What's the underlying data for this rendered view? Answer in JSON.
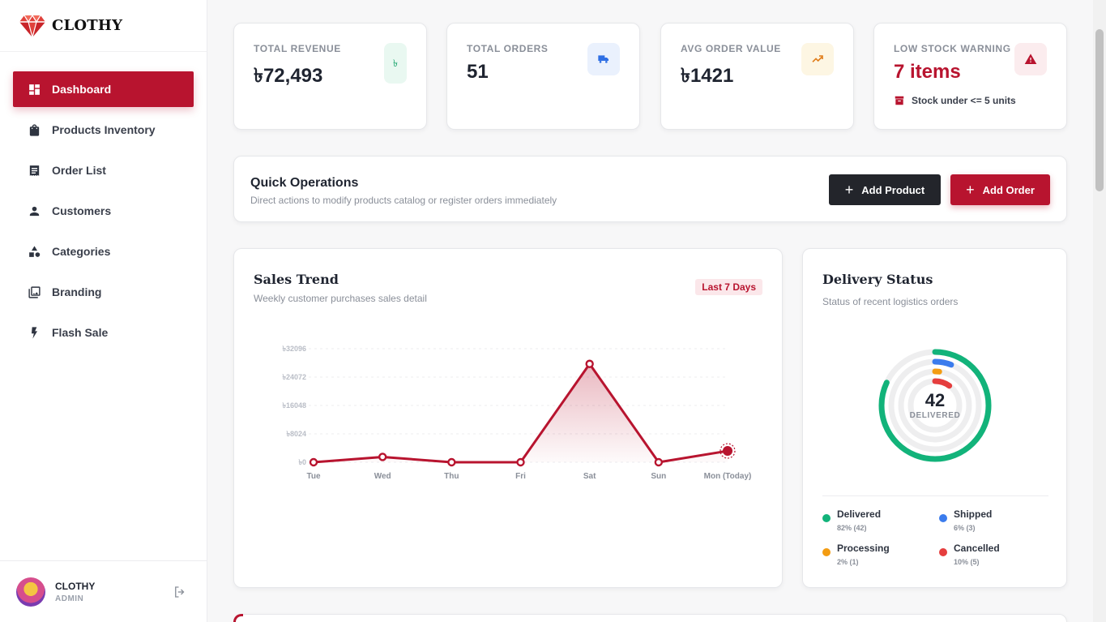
{
  "brand": {
    "name": "CLOTHY"
  },
  "sidebar": {
    "items": [
      {
        "label": "Dashboard",
        "icon": "dashboard-icon",
        "active": true
      },
      {
        "label": "Products Inventory",
        "icon": "shopping-bag-icon"
      },
      {
        "label": "Order List",
        "icon": "receipt-icon"
      },
      {
        "label": "Customers",
        "icon": "user-icon"
      },
      {
        "label": "Categories",
        "icon": "shapes-icon"
      },
      {
        "label": "Branding",
        "icon": "image-icon"
      },
      {
        "label": "Flash Sale",
        "icon": "bolt-icon"
      }
    ],
    "user": {
      "name": "CLOTHY",
      "role": "ADMIN"
    }
  },
  "stats": [
    {
      "label": "TOTAL REVENUE",
      "value": "৳72,493",
      "icon": "taka-icon",
      "icon_color": "#16a36a",
      "icon_bg": "#e9f8f1"
    },
    {
      "label": "TOTAL ORDERS",
      "value": "51",
      "icon": "truck-icon",
      "icon_color": "#2f6fe4",
      "icon_bg": "#eaf1fd"
    },
    {
      "label": "AVG ORDER VALUE",
      "value": "৳1421",
      "icon": "trending-up-icon",
      "icon_color": "#e07b17",
      "icon_bg": "#fdf6e3"
    },
    {
      "label": "LOW STOCK WARNING",
      "value": "7 items",
      "note": "Stock under <= 5 units",
      "icon": "warning-icon",
      "icon_color": "#b8142f",
      "icon_bg": "#fbecee"
    }
  ],
  "quick": {
    "title": "Quick Operations",
    "subtitle": "Direct actions to modify products catalog or register orders immediately",
    "add_product": "Add Product",
    "add_order": "Add Order"
  },
  "sales": {
    "title": "Sales Trend",
    "subtitle": "Weekly customer purchases sales detail",
    "badge": "Last 7 Days"
  },
  "chart_data": {
    "type": "area",
    "categories": [
      "Tue",
      "Wed",
      "Thu",
      "Fri",
      "Sat",
      "Sun",
      "Mon (Today)"
    ],
    "values": [
      0,
      1500,
      0,
      0,
      27800,
      0,
      3200
    ],
    "y_ticks": [
      "৳0",
      "৳8024",
      "৳16048",
      "৳24072",
      "৳32096"
    ],
    "ylim": [
      0,
      32096
    ],
    "grid": true,
    "color": "#b8142f",
    "highlight_last": true
  },
  "delivery": {
    "title": "Delivery Status",
    "subtitle": "Status of recent logistics orders",
    "center_value": "42",
    "center_label": "DELIVERED",
    "legend": [
      {
        "name": "Delivered",
        "value": "82% (42)",
        "color": "#12b37a",
        "pct": 82
      },
      {
        "name": "Shipped",
        "value": "6% (3)",
        "color": "#3b7ced",
        "pct": 6
      },
      {
        "name": "Processing",
        "value": "2% (1)",
        "color": "#f39c12",
        "pct": 2
      },
      {
        "name": "Cancelled",
        "value": "10% (5)",
        "color": "#e53e3e",
        "pct": 10
      }
    ]
  }
}
